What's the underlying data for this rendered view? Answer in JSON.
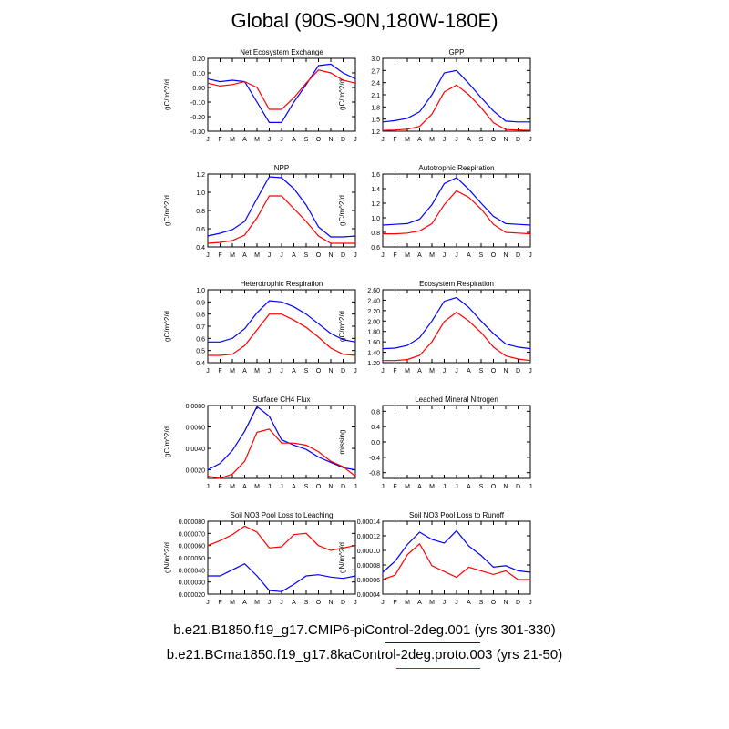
{
  "page": {
    "title": "Global (90S-90N,180W-180E)"
  },
  "legend": [
    {
      "label": "b.e21.B1850.f19_g17.CMIP6-piControl-2deg.001 (yrs 301-330)",
      "color": "#0000ff"
    },
    {
      "label": "b.e21.BCma1850.f19_g17.8kaControl-2deg.proto.003 (yrs 21-50)",
      "color": "#ff0000"
    }
  ],
  "month_labels": [
    "J",
    "F",
    "M",
    "A",
    "M",
    "J",
    "J",
    "A",
    "S",
    "O",
    "N",
    "D",
    "J"
  ],
  "chart_data": [
    {
      "type": "line",
      "title": "Net Ecosystem Exchange",
      "ylabel": "gC/m^2/d",
      "ylim": [
        -0.3,
        0.2
      ],
      "yticks": [
        "-0.30",
        "-0.20",
        "-0.10",
        "0.00",
        "0.10",
        "0.20"
      ],
      "ytick_values": [
        -0.3,
        -0.2,
        -0.1,
        0.0,
        0.1,
        0.2
      ],
      "series": [
        {
          "color": "#0000ff",
          "values": [
            0.06,
            0.04,
            0.05,
            0.04,
            -0.1,
            -0.24,
            -0.24,
            -0.1,
            0.02,
            0.15,
            0.16,
            0.1,
            0.06
          ]
        },
        {
          "color": "#ff0000",
          "values": [
            0.03,
            0.01,
            0.02,
            0.04,
            0.0,
            -0.15,
            -0.15,
            -0.07,
            0.03,
            0.12,
            0.1,
            0.05,
            0.03
          ]
        }
      ]
    },
    {
      "type": "line",
      "title": "GPP",
      "ylabel": "gC/m^2/d",
      "ylim": [
        1.2,
        3.0
      ],
      "yticks": [
        "1.2",
        "1.5",
        "1.8",
        "2.1",
        "2.4",
        "2.7",
        "3.0"
      ],
      "ytick_values": [
        1.2,
        1.5,
        1.8,
        2.1,
        2.4,
        2.7,
        3.0
      ],
      "series": [
        {
          "color": "#0000ff",
          "values": [
            1.43,
            1.46,
            1.52,
            1.68,
            2.1,
            2.64,
            2.7,
            2.38,
            2.03,
            1.7,
            1.45,
            1.43,
            1.43
          ]
        },
        {
          "color": "#ff0000",
          "values": [
            1.22,
            1.23,
            1.25,
            1.32,
            1.62,
            2.17,
            2.34,
            2.1,
            1.78,
            1.41,
            1.24,
            1.23,
            1.22
          ]
        }
      ]
    },
    {
      "type": "line",
      "title": "NPP",
      "ylabel": "gC/m^2/d",
      "ylim": [
        0.4,
        1.2
      ],
      "yticks": [
        "0.4",
        "0.6",
        "0.8",
        "1.0",
        "1.2"
      ],
      "ytick_values": [
        0.4,
        0.6,
        0.8,
        1.0,
        1.2
      ],
      "series": [
        {
          "color": "#0000ff",
          "values": [
            0.52,
            0.55,
            0.59,
            0.68,
            0.93,
            1.17,
            1.16,
            1.04,
            0.86,
            0.62,
            0.51,
            0.51,
            0.52
          ]
        },
        {
          "color": "#ff0000",
          "values": [
            0.44,
            0.45,
            0.47,
            0.53,
            0.72,
            0.96,
            0.96,
            0.82,
            0.68,
            0.52,
            0.44,
            0.44,
            0.44
          ]
        }
      ]
    },
    {
      "type": "line",
      "title": "Autotrophic Respiration",
      "ylabel": "gC/m^2/d",
      "ylim": [
        0.6,
        1.6
      ],
      "yticks": [
        "0.6",
        "0.8",
        "1.0",
        "1.2",
        "1.4",
        "1.6"
      ],
      "ytick_values": [
        0.6,
        0.8,
        1.0,
        1.2,
        1.4,
        1.6
      ],
      "series": [
        {
          "color": "#0000ff",
          "values": [
            0.9,
            0.91,
            0.92,
            0.98,
            1.18,
            1.47,
            1.55,
            1.39,
            1.2,
            1.02,
            0.92,
            0.91,
            0.9
          ]
        },
        {
          "color": "#ff0000",
          "values": [
            0.78,
            0.78,
            0.79,
            0.82,
            0.92,
            1.18,
            1.37,
            1.28,
            1.12,
            0.91,
            0.8,
            0.79,
            0.78
          ]
        }
      ]
    },
    {
      "type": "line",
      "title": "Heterotrophic Respiration",
      "ylabel": "gC/m^2/d",
      "ylim": [
        0.4,
        1.0
      ],
      "yticks": [
        "0.4",
        "0.5",
        "0.6",
        "0.7",
        "0.8",
        "0.9",
        "1.0"
      ],
      "ytick_values": [
        0.4,
        0.5,
        0.6,
        0.7,
        0.8,
        0.9,
        1.0
      ],
      "series": [
        {
          "color": "#0000ff",
          "values": [
            0.57,
            0.57,
            0.6,
            0.68,
            0.81,
            0.91,
            0.9,
            0.86,
            0.8,
            0.72,
            0.64,
            0.59,
            0.57
          ]
        },
        {
          "color": "#ff0000",
          "values": [
            0.46,
            0.46,
            0.47,
            0.54,
            0.67,
            0.8,
            0.8,
            0.75,
            0.69,
            0.61,
            0.52,
            0.47,
            0.46
          ]
        }
      ]
    },
    {
      "type": "line",
      "title": "Ecosystem Respiration",
      "ylabel": "gC/m^2/d",
      "ylim": [
        1.2,
        2.6
      ],
      "yticks": [
        "1.20",
        "1.40",
        "1.60",
        "1.80",
        "2.00",
        "2.20",
        "2.40",
        "2.60"
      ],
      "ytick_values": [
        1.2,
        1.4,
        1.6,
        1.8,
        2.0,
        2.2,
        2.4,
        2.6
      ],
      "series": [
        {
          "color": "#0000ff",
          "values": [
            1.47,
            1.48,
            1.53,
            1.68,
            2.0,
            2.38,
            2.45,
            2.26,
            2.0,
            1.76,
            1.56,
            1.5,
            1.47
          ]
        },
        {
          "color": "#ff0000",
          "values": [
            1.24,
            1.24,
            1.26,
            1.34,
            1.6,
            1.99,
            2.17,
            2.0,
            1.78,
            1.5,
            1.33,
            1.27,
            1.24
          ]
        }
      ]
    },
    {
      "type": "line",
      "title": "Surface CH4 Flux",
      "ylabel": "gC/m^2/d",
      "ylim": [
        0.0012,
        0.008
      ],
      "yticks": [
        "0.0020",
        "0.0040",
        "0.0060",
        "0.0080"
      ],
      "ytick_values": [
        0.002,
        0.004,
        0.006,
        0.008
      ],
      "series": [
        {
          "color": "#0000ff",
          "values": [
            0.002,
            0.0026,
            0.0038,
            0.0056,
            0.0079,
            0.007,
            0.0048,
            0.0043,
            0.0039,
            0.0032,
            0.0027,
            0.0022,
            0.002
          ]
        },
        {
          "color": "#ff0000",
          "values": [
            0.0014,
            0.0012,
            0.0016,
            0.0028,
            0.0055,
            0.0058,
            0.0045,
            0.0045,
            0.0043,
            0.0037,
            0.0028,
            0.0023,
            0.0014
          ]
        }
      ]
    },
    {
      "type": "line",
      "title": "Leached Mineral Nitrogen",
      "ylabel": "missing",
      "ylim": [
        -0.95,
        0.95
      ],
      "yticks": [
        "-0.8",
        "-0.4",
        "0.0",
        "0.4",
        "0.8"
      ],
      "ytick_values": [
        -0.8,
        -0.4,
        0.0,
        0.4,
        0.8
      ],
      "series": []
    },
    {
      "type": "line",
      "title": "Soil NO3 Pool Loss to Leaching",
      "ylabel": "gN/m^2/d",
      "ylim": [
        2e-05,
        8e-05
      ],
      "yticks": [
        "0.000020",
        "0.000030",
        "0.000040",
        "0.000050",
        "0.000060",
        "0.000070",
        "0.000080"
      ],
      "ytick_values": [
        2e-05,
        3e-05,
        4e-05,
        5e-05,
        6e-05,
        7e-05,
        8e-05
      ],
      "series": [
        {
          "color": "#0000ff",
          "values": [
            3.5e-05,
            3.5e-05,
            4e-05,
            4.5e-05,
            3.5e-05,
            2.3e-05,
            2.2e-05,
            2.8e-05,
            3.5e-05,
            3.6e-05,
            3.4e-05,
            3.3e-05,
            3.5e-05
          ]
        },
        {
          "color": "#ff0000",
          "values": [
            6e-05,
            6.4e-05,
            6.9e-05,
            7.6e-05,
            7.1e-05,
            5.8e-05,
            5.9e-05,
            6.9e-05,
            7e-05,
            6e-05,
            5.6e-05,
            5.8e-05,
            6e-05
          ]
        }
      ]
    },
    {
      "type": "line",
      "title": "Soil NO3 Pool Loss to Runoff",
      "ylabel": "gN/m^2/d",
      "ylim": [
        4e-05,
        0.00014
      ],
      "yticks": [
        "0.00004",
        "0.00006",
        "0.00008",
        "0.00010",
        "0.00012",
        "0.00014"
      ],
      "ytick_values": [
        4e-05,
        6e-05,
        8e-05,
        0.0001,
        0.00012,
        0.00014
      ],
      "series": [
        {
          "color": "#0000ff",
          "values": [
            7e-05,
            8.5e-05,
            0.000108,
            0.000125,
            0.000115,
            0.00011,
            0.000127,
            0.000106,
            9.3e-05,
            7.7e-05,
            7.9e-05,
            7.2e-05,
            7e-05
          ]
        },
        {
          "color": "#ff0000",
          "values": [
            6e-05,
            6.6e-05,
            9.4e-05,
            0.000109,
            7.9e-05,
            7.1e-05,
            6.3e-05,
            7.7e-05,
            7.2e-05,
            6.7e-05,
            7.2e-05,
            6e-05,
            6e-05
          ]
        }
      ]
    }
  ]
}
